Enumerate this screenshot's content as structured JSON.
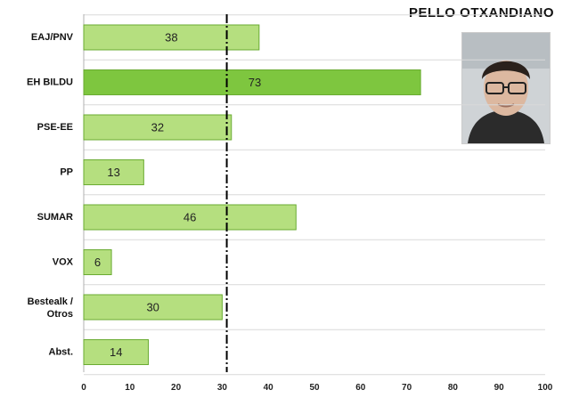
{
  "chart_data": {
    "type": "bar",
    "orientation": "horizontal",
    "title": "PELLO OTXANDIANO",
    "categories": [
      "EAJ/PNV",
      "EH BILDU",
      "PSE-EE",
      "PP",
      "SUMAR",
      "VOX",
      "Bestealk / Otros",
      "Abst."
    ],
    "values": [
      38,
      73,
      32,
      13,
      46,
      6,
      30,
      14
    ],
    "highlight_index": 1,
    "reference_line": 31,
    "xlim": [
      0,
      100
    ],
    "xticks": [
      0,
      10,
      20,
      30,
      40,
      50,
      60,
      70,
      80,
      90,
      100
    ],
    "xlabel": "",
    "ylabel": "",
    "grid": true,
    "colors": {
      "bar": "#b5df7f",
      "bar_highlight": "#7ec63f",
      "bar_border": "#6aab32",
      "grid": "#d9d9d9",
      "reference_line": "#000000"
    }
  },
  "photo": {
    "icon": "portrait-photo"
  }
}
